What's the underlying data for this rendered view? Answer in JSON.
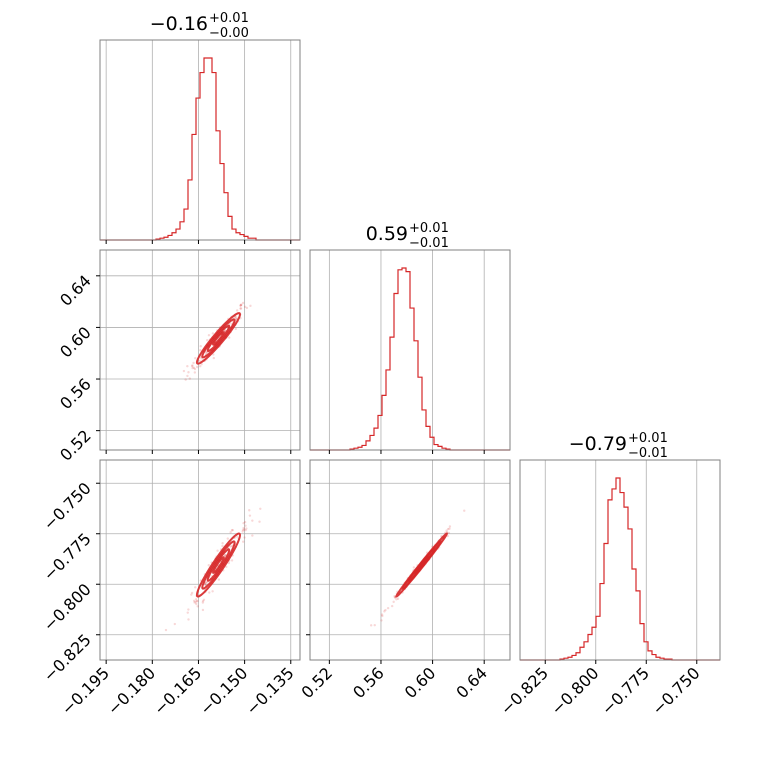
{
  "colors": {
    "line": "#d62728",
    "grid": "#b0b0b0",
    "frame": "#808080",
    "background": "#ffffff"
  },
  "chart_data": {
    "type": "corner",
    "parameters": [
      {
        "title_main": "−0.16",
        "title_plus": "+0.01",
        "title_minus": "−0.00",
        "range": [
          -0.197,
          -0.132
        ],
        "ticks": [
          -0.195,
          -0.18,
          -0.165,
          -0.15,
          -0.135
        ],
        "tick_labels": [
          "−0.195",
          "−0.180",
          "−0.165",
          "−0.150",
          "−0.135"
        ],
        "hist": {
          "edges_start": -0.197,
          "bin_width": 0.0013,
          "counts": [
            0,
            0,
            0,
            0,
            0,
            0,
            0,
            0,
            0,
            0,
            0,
            0,
            0,
            0,
            0.5,
            1,
            1.5,
            2.5,
            4,
            6,
            10,
            17,
            33,
            58,
            78,
            92,
            100,
            100,
            92,
            60,
            42,
            26,
            13,
            6,
            4,
            3,
            2,
            1,
            1,
            0,
            0,
            0,
            0,
            0,
            0,
            0,
            0,
            0,
            0,
            0
          ]
        }
      },
      {
        "title_main": "0.59",
        "title_plus": "+0.01",
        "title_minus": "−0.01",
        "range": [
          0.505,
          0.66
        ],
        "ticks": [
          0.52,
          0.56,
          0.6,
          0.64
        ],
        "tick_labels": [
          "0.52",
          "0.56",
          "0.60",
          "0.64"
        ],
        "hist": {
          "edges_start": 0.505,
          "bin_width": 0.0031,
          "counts": [
            0,
            0,
            0,
            0,
            0,
            0,
            0,
            0,
            0,
            0,
            0.5,
            1,
            1.5,
            2.5,
            5,
            8,
            12,
            19,
            30,
            44,
            62,
            86,
            99,
            100,
            98,
            78,
            60,
            40,
            22,
            13,
            7,
            3,
            2,
            1,
            0.5,
            0,
            0,
            0,
            0,
            0,
            0,
            0,
            0,
            0,
            0,
            0,
            0,
            0,
            0,
            0
          ]
        }
      },
      {
        "title_main": "−0.79",
        "title_plus": "+0.01",
        "title_minus": "−0.01",
        "range": [
          -0.8375,
          -0.7385
        ],
        "ticks": [
          -0.825,
          -0.8,
          -0.775,
          -0.75
        ],
        "tick_labels": [
          "−0.825",
          "−0.800",
          "−0.775",
          "−0.750"
        ],
        "hist": {
          "edges_start": -0.8375,
          "bin_width": 0.00198,
          "counts": [
            0,
            0,
            0,
            0,
            0,
            0,
            0,
            0,
            0,
            0,
            0.5,
            1,
            1.5,
            2.5,
            4,
            7,
            10,
            14,
            18,
            24,
            42,
            64,
            88,
            94,
            100,
            92,
            84,
            72,
            50,
            38,
            20,
            10,
            5,
            3,
            1.5,
            1,
            0.5,
            0.5,
            0,
            0,
            0,
            0,
            0,
            0,
            0,
            0,
            0,
            0,
            0,
            0
          ]
        }
      }
    ],
    "pairs": [
      {
        "x": 0,
        "y": 1,
        "center": [
          -0.1585,
          0.5915
        ],
        "sd": [
          0.0035,
          0.0098
        ],
        "rho": 0.95
      },
      {
        "x": 0,
        "y": 2,
        "center": [
          -0.1585,
          -0.7905
        ],
        "sd": [
          0.0035,
          0.0078
        ],
        "rho": 0.95
      },
      {
        "x": 1,
        "y": 2,
        "center": [
          0.5915,
          -0.7905
        ],
        "sd": [
          0.0098,
          0.0078
        ],
        "rho": 0.995
      }
    ],
    "grid": true
  }
}
